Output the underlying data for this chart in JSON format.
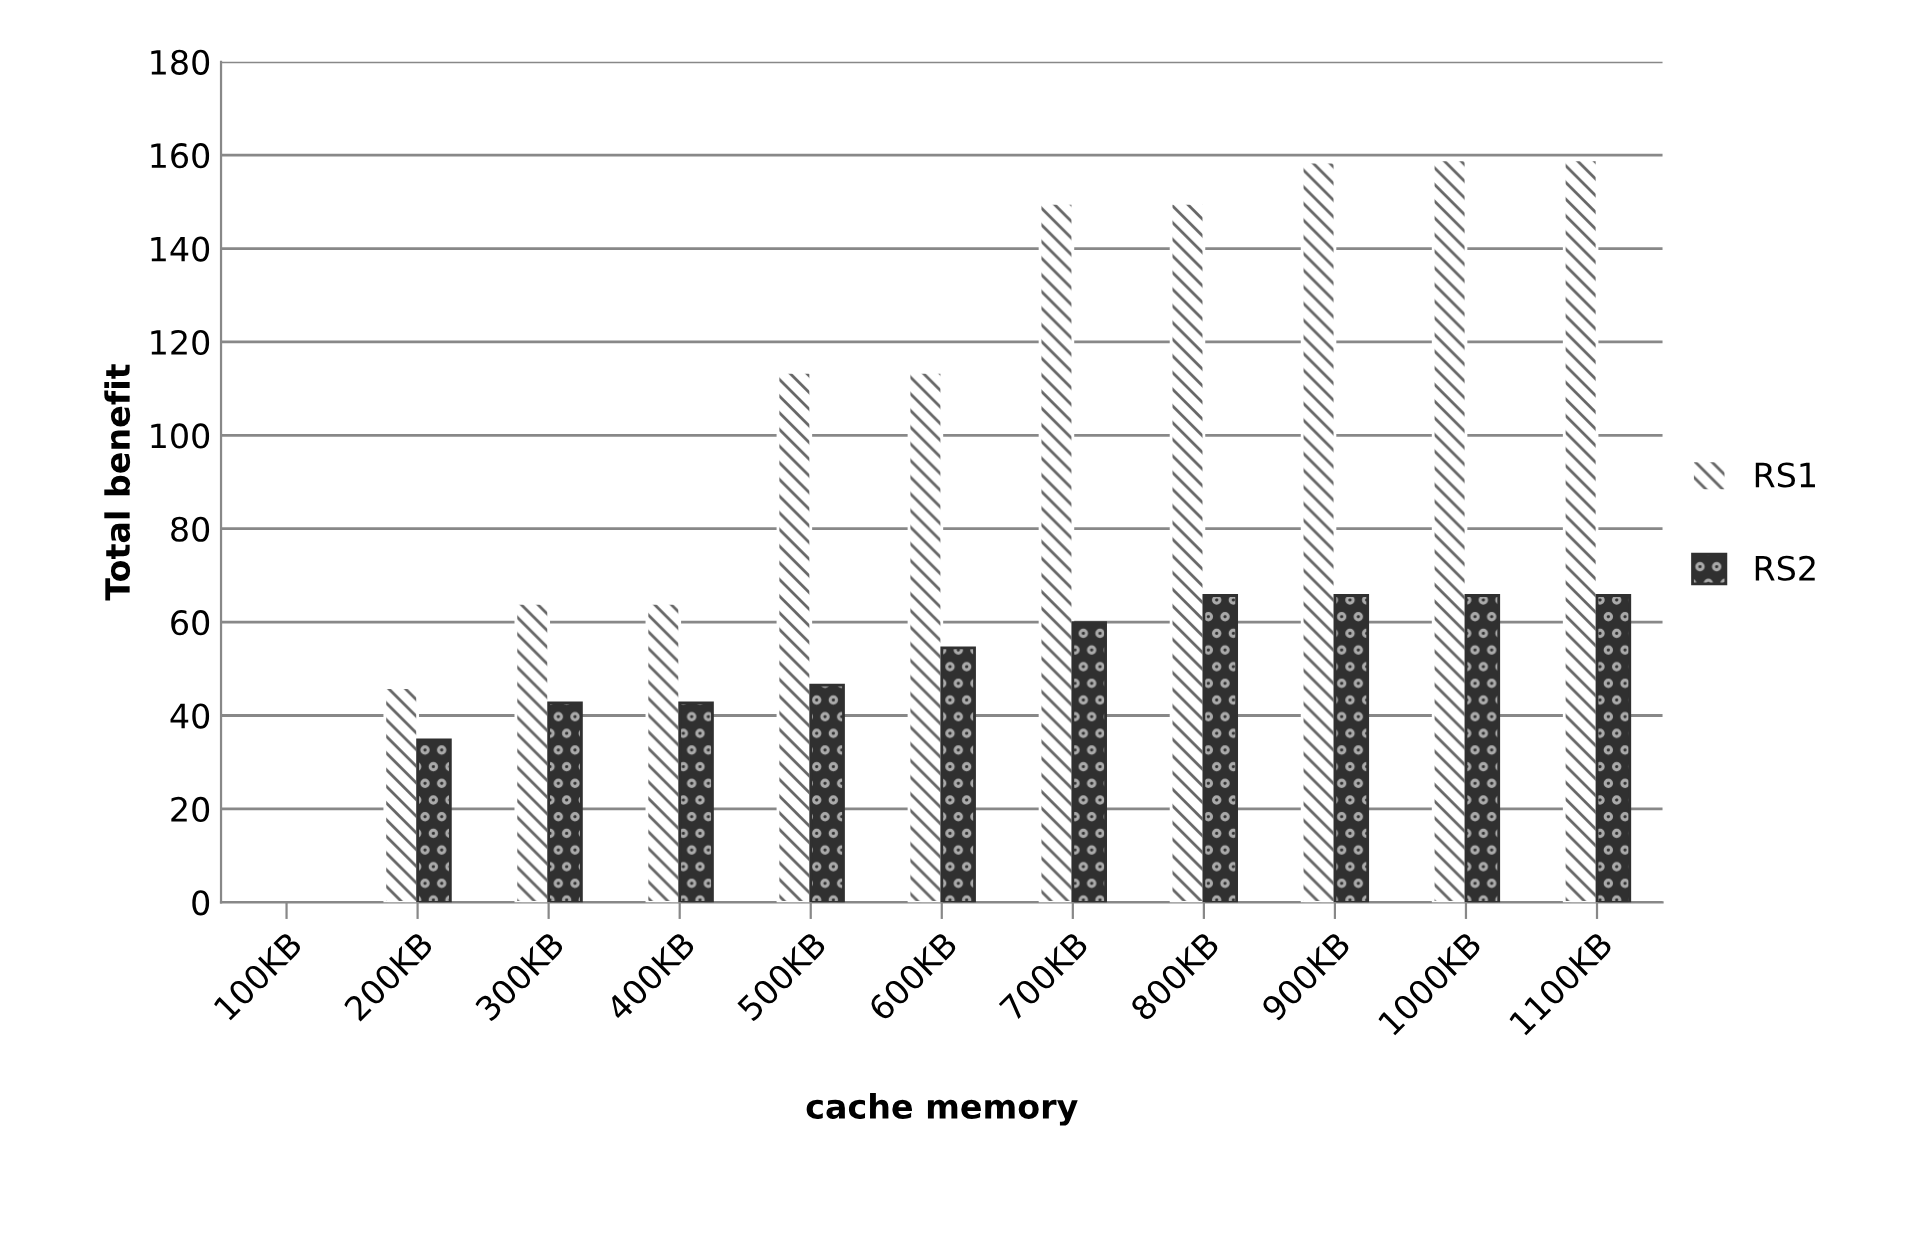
{
  "chart_data": {
    "type": "bar",
    "xlabel": "cache memory",
    "ylabel": "Total benefit",
    "categories": [
      "100KB",
      "200KB",
      "300KB",
      "400KB",
      "500KB",
      "600KB",
      "700KB",
      "800KB",
      "900KB",
      "1000KB",
      "1100KB"
    ],
    "series": [
      {
        "name": "RS1",
        "color": "#ffffff",
        "values": [
          null,
          46,
          64,
          64,
          113.5,
          113.5,
          149.7,
          149.7,
          158.5,
          159,
          159
        ]
      },
      {
        "name": "RS2",
        "color": "#303030",
        "values": [
          null,
          34.8,
          42.7,
          42.7,
          46.5,
          54.5,
          59.9,
          65.7,
          65.7,
          65.7,
          65.7
        ]
      }
    ],
    "ylim": [
      0,
      180
    ],
    "yticks": [
      0,
      20,
      40,
      60,
      80,
      100,
      120,
      140,
      160,
      180
    ],
    "grid": "y",
    "legend": "right"
  }
}
